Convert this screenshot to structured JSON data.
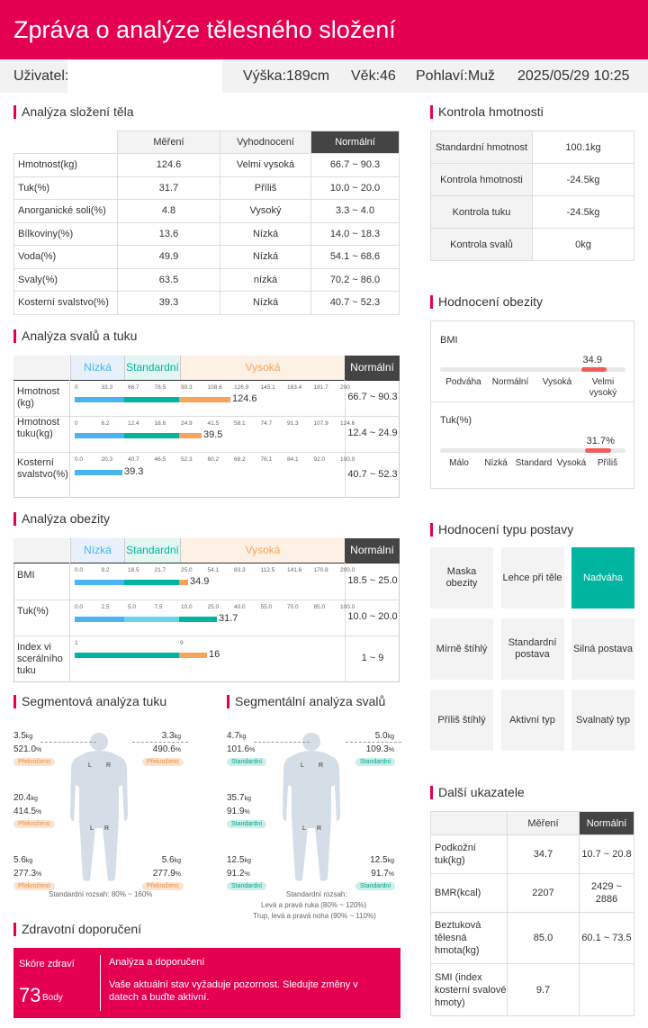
{
  "header": {
    "title": "Zpráva o analýze tělesného složení"
  },
  "info": {
    "user_label": "Uživatel:",
    "height": "Výška:189cm",
    "age": "Věk:46",
    "sex": "Pohlaví:Muž",
    "datetime": "2025/05/29 10:25"
  },
  "composition": {
    "title": "Analýza složení těla",
    "cols": [
      "Měření",
      "Vyhodnocení",
      "Normální"
    ],
    "rows": [
      {
        "name": "Hmotnost(kg)",
        "value": "124.6",
        "eval": "Velmi vysoká",
        "normal": "66.7 ~ 90.3"
      },
      {
        "name": "Tuk(%)",
        "value": "31.7",
        "eval": "Příliš",
        "normal": "10.0 ~ 20.0"
      },
      {
        "name": "Anorganické soli(%)",
        "value": "4.8",
        "eval": "Vysoký",
        "normal": "3.3 ~ 4.0"
      },
      {
        "name": "Bílkoviny(%)",
        "value": "13.6",
        "eval": "Nízká",
        "normal": "14.0 ~ 18.3"
      },
      {
        "name": "Voda(%)",
        "value": "49.9",
        "eval": "Nízká",
        "normal": "54.1 ~ 68.6"
      },
      {
        "name": "Svaly(%)",
        "value": "63.5",
        "eval": "nízká",
        "normal": "70.2 ~ 86.0"
      },
      {
        "name": "Kosterní svalstvo(%)",
        "value": "39.3",
        "eval": "Nízká",
        "normal": "40.7 ~ 52.3"
      }
    ]
  },
  "weight_control": {
    "title": "Kontrola hmotnosti",
    "rows": [
      {
        "name": "Standardní hmotnost",
        "value": "100.1kg"
      },
      {
        "name": "Kontrola hmotnosti",
        "value": "-24.5kg"
      },
      {
        "name": "Kontrola tuku",
        "value": "-24.5kg"
      },
      {
        "name": "Kontrola svalů",
        "value": "0kg"
      }
    ]
  },
  "muscle_fat": {
    "title": "Analýza svalů a tuku",
    "bands": [
      "Nízká",
      "Standardní",
      "Vysoká"
    ],
    "normal_label": "Normální",
    "rows": [
      {
        "name": "Hmotnost (kg)",
        "ticks": [
          "0",
          "33.3",
          "66.7",
          "78.5",
          "90.3",
          "108.6",
          "126.9",
          "145.1",
          "163.4",
          "181.7",
          "200"
        ],
        "value": "124.6",
        "normal": "66.7 ~ 90.3"
      },
      {
        "name": "Hmotnost tuku(kg)",
        "ticks": [
          "0",
          "6.2",
          "12.4",
          "18.6",
          "24.9",
          "41.5",
          "58.1",
          "74.7",
          "91.3",
          "107.9",
          "124.6"
        ],
        "value": "39.5",
        "normal": "12.4 ~ 24.9"
      },
      {
        "name": "Kosterní svalstvo(%)",
        "ticks": [
          "0.0",
          "20.3",
          "40.7",
          "46.5",
          "52.3",
          "60.2",
          "68.2",
          "76.1",
          "84.1",
          "92.0",
          "100.0"
        ],
        "value": "39.3",
        "normal": "40.7 ~ 52.3"
      }
    ]
  },
  "obesity_analysis": {
    "title": "Analýza obezity",
    "bands": [
      "Nízká",
      "Standardní",
      "Vysoká"
    ],
    "normal_label": "Normální",
    "rows": [
      {
        "name": "BMI",
        "ticks": [
          "0.0",
          "9.2",
          "18.5",
          "21.7",
          "25.0",
          "54.1",
          "83.3",
          "112.5",
          "141.6",
          "170.8",
          "200.0"
        ],
        "value": "34.9",
        "normal": "18.5 ~ 25.0"
      },
      {
        "name": "Tuk(%)",
        "ticks": [
          "0.0",
          "2.5",
          "5.0",
          "7.5",
          "10.0",
          "25.0",
          "40.0",
          "55.0",
          "70.0",
          "85.0",
          "100.0"
        ],
        "value": "31.7",
        "normal": "10.0 ~ 20.0"
      },
      {
        "name": "Index vi scerálního tuku",
        "ticks": [
          "1",
          "9"
        ],
        "value": "16",
        "normal": "1 ~ 9"
      }
    ]
  },
  "obesity_eval": {
    "title": "Hodnocení obezity",
    "bmi": {
      "label": "BMI",
      "value": "34.9",
      "level": 0.9,
      "cats": [
        "Podváha",
        "Normální",
        "Vysoká",
        "Velmi vysoký"
      ]
    },
    "fat": {
      "label": "Tuk(%)",
      "value": "31.7%",
      "level": 0.92,
      "cats": [
        "Málo",
        "Nízká",
        "Standard",
        "Vysoká",
        "Příliš"
      ]
    }
  },
  "body_type": {
    "title": "Hodnocení typu postavy",
    "items": [
      "Maska obezity",
      "Lehce při tělе",
      "Nadváha",
      "Mírně štíhlý",
      "Standardní postava",
      "Silná postava",
      "Příliš štíhlý",
      "Aktivní typ",
      "Svalnatý typ"
    ],
    "active_color": "#00b5a0"
  },
  "other": {
    "title": "Další ukazatele",
    "cols": [
      "Měření",
      "Normální"
    ],
    "rows": [
      {
        "name": "Podkožní tuk(kg)",
        "value": "34.7",
        "normal": "10.7 ~ 20.8"
      },
      {
        "name": "BMR(kcal)",
        "value": "2207",
        "normal": "2429 ~ 2886"
      },
      {
        "name": "Beztuková tělesná hmota(kg)",
        "value": "85.0",
        "normal": "60.1 ~ 73.5"
      },
      {
        "name": "SMI (index kosterní svalové hmoty)",
        "value": "9.7",
        "normal": ""
      }
    ]
  },
  "seg_fat": {
    "title": "Segmentová analýza tuku",
    "la": {
      "kg": "3.5",
      "pct": "521.0",
      "badge": "Překročeno"
    },
    "ra": {
      "kg": "3.3",
      "pct": "490.6",
      "badge": "Překročeno"
    },
    "tr": {
      "kg": "20.4",
      "pct": "414.5",
      "badge": "Překročeno"
    },
    "ll": {
      "kg": "5.6",
      "pct": "277.3",
      "badge": "Překročeno"
    },
    "rl": {
      "kg": "5.6",
      "pct": "277.9",
      "badge": "Překročeno"
    },
    "foot": "Standardní rozsah: 80% ~ 160%"
  },
  "seg_mus": {
    "title": "Segmentální analýza svalů",
    "la": {
      "kg": "4.7",
      "pct": "101.6",
      "badge": "Standardní"
    },
    "ra": {
      "kg": "5.0",
      "pct": "109.3",
      "badge": "Standardní"
    },
    "tr": {
      "kg": "35.7",
      "pct": "91.9",
      "badge": "Standardní"
    },
    "ll": {
      "kg": "12.5",
      "pct": "91.2",
      "badge": "Standardní"
    },
    "rl": {
      "kg": "12.5",
      "pct": "91.7",
      "badge": "Standardní"
    },
    "foot1": "Standardní rozsah:",
    "foot2": "Levá a pravá ruka (80% ~ 120%)",
    "foot3": "Trup, levá a pravá noha (90% ~ 110%)"
  },
  "units": {
    "kg": "kg",
    "pct": "%"
  },
  "health": {
    "title": "Zdravotní doporučení",
    "score_label": "Skóre zdraví",
    "score": "73",
    "score_unit": "Body",
    "advice_title": "Analýza a doporučení",
    "advice": "Vaše aktuální stav vyžaduje pozornost. Sledujte změny v datech a buďte aktivní."
  },
  "colors": {
    "brand": "#e5004f",
    "low": "#4ab3f4",
    "std": "#00b5a0",
    "high": "#f7a35c",
    "over": "#f25c5c"
  }
}
